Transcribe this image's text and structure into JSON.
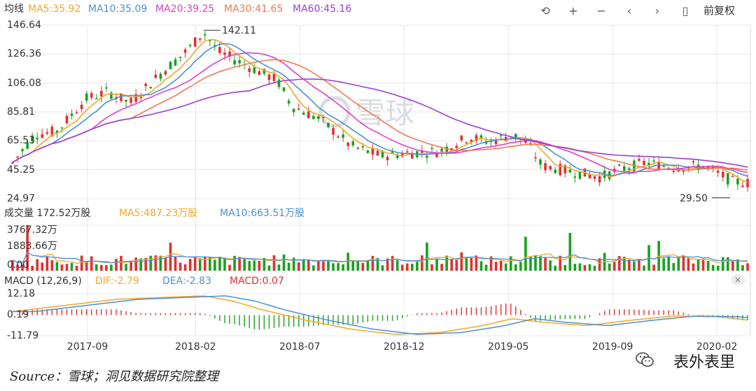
{
  "header": {
    "ma_title": "均线",
    "ma_items": [
      {
        "label": "MA5:35.92",
        "color": "#f5a623"
      },
      {
        "label": "MA10:35.09",
        "color": "#4a90d9"
      },
      {
        "label": "MA20:39.25",
        "color": "#e040c8"
      },
      {
        "label": "MA30:41.65",
        "color": "#f07a50"
      },
      {
        "label": "MA60:45.16",
        "color": "#9b3fd4"
      }
    ],
    "toolbar": {
      "back_icon": "undo-icon",
      "zoom_in_icon": "plus-icon",
      "zoom_out_icon": "minus-icon",
      "prev_icon": "chevron-left-icon",
      "next_icon": "chevron-right-icon",
      "candle_icon": "candlestick-icon",
      "adjust_label": "前复权"
    }
  },
  "volume_header": {
    "title": "成交量 172.52万股",
    "ma5": "MA5:487.23万股",
    "ma10": "MA10:663.51万股"
  },
  "macd_header": {
    "title": "MACD (12,26,9)",
    "dif": "DIF:-2.79",
    "dea": "DEA:-2.83",
    "macd": "MACD:0.07",
    "close_icon": "close-icon"
  },
  "watermark": "雪球",
  "footer": {
    "source": "Source：雪球；洞见数据研究院整理",
    "brand": "表外表里",
    "brand_icon": "wechat-icon"
  },
  "chart_data": {
    "type": "candlestick",
    "x_ticks": [
      "2017-09",
      "2018-02",
      "2018-07",
      "2018-12",
      "2019-05",
      "2019-09",
      "2020-02"
    ],
    "price_axis": {
      "ticks": [
        "146.64",
        "126.36",
        "106.08",
        "85.81",
        "65.53",
        "45.25",
        "24.97"
      ],
      "ylim": [
        24.97,
        146.64
      ]
    },
    "annotations": [
      {
        "label": "142.11",
        "value": 142.11,
        "kind": "high"
      },
      {
        "label": "29.50",
        "value": 29.5,
        "kind": "low"
      }
    ],
    "price_path": [
      [
        0,
        50
      ],
      [
        3,
        70
      ],
      [
        6,
        72
      ],
      [
        10,
        95
      ],
      [
        13,
        100
      ],
      [
        16,
        92
      ],
      [
        20,
        112
      ],
      [
        24,
        130
      ],
      [
        26,
        142
      ],
      [
        28,
        128
      ],
      [
        32,
        118
      ],
      [
        36,
        108
      ],
      [
        38,
        90
      ],
      [
        42,
        80
      ],
      [
        46,
        62
      ],
      [
        50,
        55
      ],
      [
        54,
        57
      ],
      [
        58,
        58
      ],
      [
        62,
        68
      ],
      [
        65,
        65
      ],
      [
        68,
        70
      ],
      [
        70,
        64
      ],
      [
        72,
        48
      ],
      [
        76,
        44
      ],
      [
        80,
        40
      ],
      [
        83,
        46
      ],
      [
        86,
        50
      ],
      [
        90,
        47
      ],
      [
        94,
        48
      ],
      [
        98,
        37
      ],
      [
        100,
        36
      ]
    ],
    "ma_series": [
      {
        "name": "MA5",
        "color": "#f5a623",
        "lag": 1
      },
      {
        "name": "MA10",
        "color": "#4a90d9",
        "lag": 2
      },
      {
        "name": "MA20",
        "color": "#e040c8",
        "lag": 4
      },
      {
        "name": "MA30",
        "color": "#f07a50",
        "lag": 6
      },
      {
        "name": "MA60",
        "color": "#9b3fd4",
        "lag": 12
      }
    ],
    "volume_axis": {
      "ticks": [
        "3767.32万",
        "1883.66万",
        "0.00"
      ],
      "ylim": [
        0,
        3767.32
      ]
    },
    "macd_axis": {
      "ticks": [
        "12.18",
        "0.19",
        "-11.79"
      ],
      "ylim": [
        -11.79,
        12.18
      ]
    },
    "macd_path": [
      [
        0,
        2
      ],
      [
        8,
        6
      ],
      [
        14,
        9
      ],
      [
        20,
        10
      ],
      [
        26,
        11
      ],
      [
        30,
        8
      ],
      [
        34,
        3
      ],
      [
        40,
        -3
      ],
      [
        46,
        -8
      ],
      [
        52,
        -11
      ],
      [
        58,
        -10
      ],
      [
        64,
        -6
      ],
      [
        68,
        -2
      ],
      [
        72,
        -4
      ],
      [
        78,
        -6
      ],
      [
        84,
        -3
      ],
      [
        90,
        -0.5
      ],
      [
        96,
        -1
      ],
      [
        100,
        -2.8
      ]
    ],
    "colors": {
      "up": "#e03030",
      "down": "#19a11e",
      "dif": "#f5a623",
      "dea": "#4a90d9"
    }
  }
}
